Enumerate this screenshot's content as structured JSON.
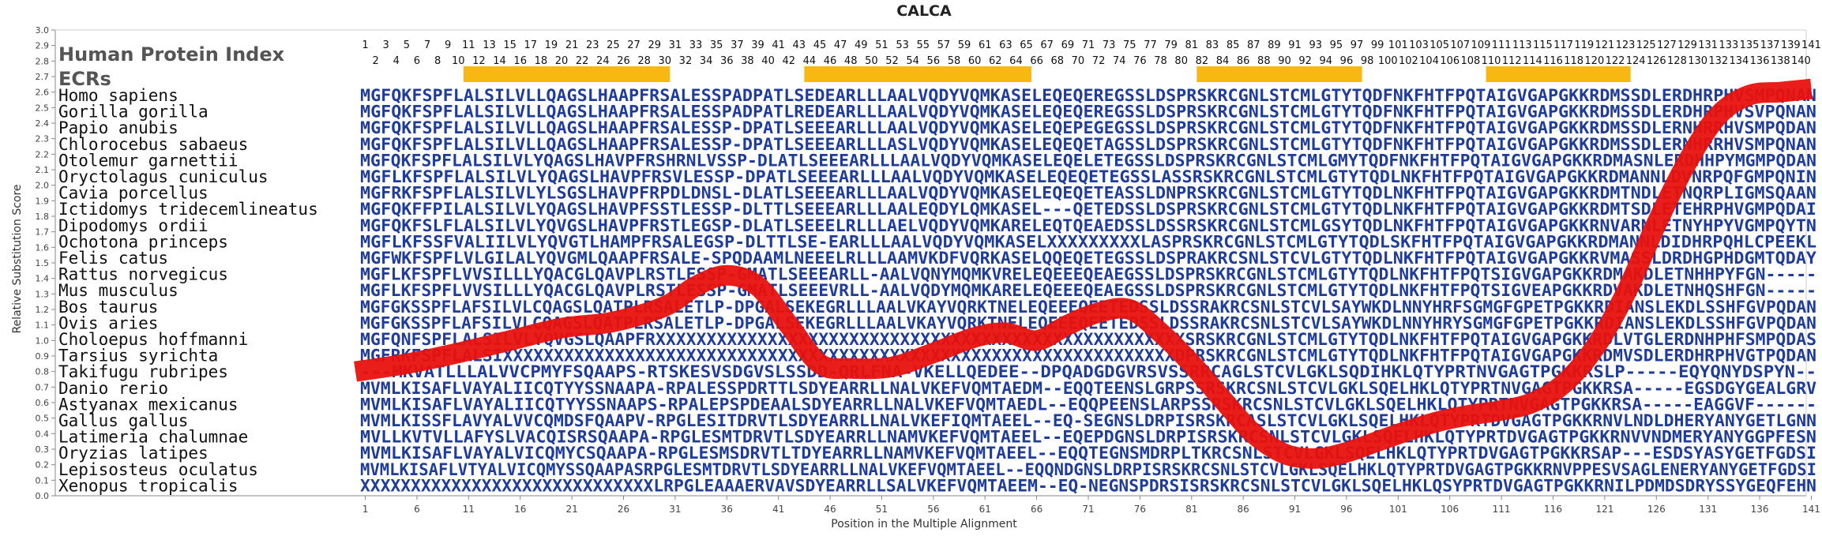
{
  "chart_data": {
    "type": "line",
    "title": "CALCA",
    "xlabel": "Position in the Multiple Alignment",
    "ylabel": "Relative Substitution Score",
    "panel_title": "Human Protein Index",
    "ecr_label": "ECRs",
    "ylim": [
      0,
      3.0
    ],
    "yticks": [
      "0.0",
      "0.1",
      "0.2",
      "0.3",
      "0.4",
      "0.5",
      "0.6",
      "0.7",
      "0.8",
      "0.9",
      "1.0",
      "1.1",
      "1.2",
      "1.3",
      "1.4",
      "1.5",
      "1.6",
      "1.7",
      "1.8",
      "1.9",
      "2.0",
      "2.1",
      "2.2",
      "2.3",
      "2.4",
      "2.5",
      "2.6",
      "2.7",
      "2.8",
      "2.9",
      "3.0"
    ],
    "xlim": [
      1,
      141
    ],
    "xticks": [
      "1",
      "6",
      "11",
      "16",
      "21",
      "26",
      "31",
      "36",
      "41",
      "46",
      "51",
      "56",
      "61",
      "66",
      "71",
      "76",
      "81",
      "86",
      "91",
      "96",
      "101",
      "106",
      "111",
      "116",
      "121",
      "126",
      "131",
      "136",
      "141"
    ],
    "index_odd": [
      "1",
      "3",
      "5",
      "7",
      "9",
      "11",
      "13",
      "15",
      "17",
      "19",
      "21",
      "23",
      "25",
      "27",
      "29",
      "31",
      "33",
      "35",
      "37",
      "39",
      "41",
      "43",
      "45",
      "47",
      "49",
      "51",
      "53",
      "55",
      "57",
      "59",
      "61",
      "63",
      "65",
      "67",
      "69",
      "71",
      "73",
      "75",
      "77",
      "79",
      "81",
      "83",
      "85",
      "87",
      "89",
      "91",
      "93",
      "95",
      "97",
      "99",
      "101",
      "103",
      "105",
      "107",
      "109",
      "111",
      "113",
      "115",
      "117",
      "119",
      "121",
      "123",
      "125",
      "127",
      "129",
      "131",
      "133",
      "135",
      "137",
      "139",
      "141"
    ],
    "index_even": [
      "2",
      "4",
      "6",
      "8",
      "10",
      "12",
      "14",
      "16",
      "18",
      "20",
      "22",
      "24",
      "26",
      "28",
      "30",
      "32",
      "34",
      "36",
      "38",
      "40",
      "42",
      "44",
      "46",
      "48",
      "50",
      "52",
      "54",
      "56",
      "58",
      "60",
      "62",
      "64",
      "66",
      "68",
      "70",
      "72",
      "74",
      "76",
      "78",
      "80",
      "82",
      "84",
      "86",
      "88",
      "90",
      "92",
      "94",
      "96",
      "98",
      "100",
      "102",
      "104",
      "106",
      "108",
      "110",
      "112",
      "114",
      "116",
      "118",
      "120",
      "122",
      "124",
      "126",
      "128",
      "130",
      "132",
      "134",
      "136",
      "138",
      "140"
    ],
    "ecrs": [
      [
        11,
        30
      ],
      [
        44,
        65
      ],
      [
        82,
        97
      ],
      [
        110,
        123
      ]
    ],
    "sequences": [
      {
        "name": "Homo sapiens",
        "seq": "MGFQKFSPFLALSILVLLQAGSLHAAPFRSALESSPADPATLSEDEARLLLAALVQDYVQMKASELEQEQEREGSSLDSPRSKRCGNLSTCMLGTYTQDFNKFHTFPQTAIGVGAPGKKRDMSSDLERDHRPHVSMPQNAN"
      },
      {
        "name": "Gorilla gorilla",
        "seq": "MGFQKFSPFLALSILVLLQAGSLHAAPFRSALESSPADPATLREDEARLLLAALVQDYVQMKASELEQEQEREGSSLDSPRSKRCGNLSTCMLGTYTQDFNKFHTFPQTAIGVGAPGKKRDMSSDLERDHRPHVSVPQNAN"
      },
      {
        "name": "Papio anubis",
        "seq": "MGFQKFSPFLALSILVLLQAGSLHAAPFRSALESSP-DPATLSEEEARLLLAALVQDYVQMKASELEQEPEGEGSSLDSPRSKRCGNLSTCMLGTYTQDFNKFHTFPQTAIGVGAPGKKRDMSSDLERNHRRHVSMPQDAN"
      },
      {
        "name": "Chlorocebus sabaeus",
        "seq": "MGFQKFSPFLALSILVLLQAGSLHAAPFRSALESSP-DPATLSEEEARLLLASLVQDYVQMKASELEQEQETAGSSLDSPRSKRCGNLSTCMLGTYTQDFNKFHTFPQTAIGVGAPGKKRDMSSDLERNHRRHVSMPQNAN"
      },
      {
        "name": "Otolemur garnettii",
        "seq": "MGFQKFSPFLALSILVLYQAGSLHAVPFRSHRNLVSSP-DLATLSEEEARLLLAALVQDYVQMKASELEQELETEGSSLDSPRSKRCGNLSTCMLGMYTQDFNKFHTFPQTAIGVGAPGKKRDMASNLERDHHPYMGMPQDAN"
      },
      {
        "name": "Oryctolagus cuniculus",
        "seq": "MGFLKFSPFLALSILVLYQAGSLHAVPFRSVLESSP-DPATLSEEEARLLLAALVQDYVQMKASELEQEQETEGSSLASSRSKRCGNLSTCMLGTYTQDLNKFHTFPQTAIGVGAPGKKRDMANNLDVNRPQFGMPQNIN"
      },
      {
        "name": "Cavia porcellus",
        "seq": "MGFRKFSPFLALSILVLYLSGSLHAVPFRPDLDNSL-DLATLSEEEARLLLAALVQDYVQMKASELEQEQETEASSLDNPRSKRCGNLSTCMLGTYTQDLNKFHTFPQTAIGVGAPGKKRDMTNDLETNQRPLIGMSQAAN"
      },
      {
        "name": "Ictidomys tridecemlineatus",
        "seq": "MGFQKFFPILALSILVLYQAGSLHAVPFSSTLESSP-DLTTLSEEEARLLLAALEQDYLQMKASEL---QETEDSSLDSPRSKRCGNLSTCMLGTYTQDLNKFHTFPQTAIGVGAPGKKRDMTSDLETEHRPHVGMPQDAI"
      },
      {
        "name": "Dipodomys ordii",
        "seq": "MGFQKFSLFLALSILVLYQVGSLHAVPFRSTLEGSP-DLATLSEEELRLLLAELVQDYVQMKARELEQTQEAEDSSLDSSRSKRCGNLSTCMLGSYTQDLNKFHTFPQTAIGVGAPGKKRNVARNLETNYHPYVGMPQYTN"
      },
      {
        "name": "Ochotona princeps",
        "seq": "MGFLKFSSFVALIILVLYQVGTLHAMPFRSALEGSP-DLTTLSE-EARLLLAALVQDYVQMKASELXXXXXXXXXLASPRSKRCGNLSTCMLGTYTQDLSKFHTFPQTAIGVGAPGKKRDMANNLDIDHRPQHLCPEEKL"
      },
      {
        "name": "Felis catus",
        "seq": "MGFWKFSPFLVLGILALYQVGMLQAAPFRSALE-SPQDAAMLNEEELRLLLAAMVKDFVQRKASELQQEQETEGSSLDSPRAKRCSNLSTCVLGTYTQDLNKFHTFPQTAIGVGAPGKKRVMASSLDRDHGPHDGMTQDAY"
      },
      {
        "name": "Rattus norvegicus",
        "seq": "MGFLKFSPFLVVSILLLYQACGLQAVPLRSTLESSP-GMATLSEEEARLL-AALVQNYMQMKVRELEQEEEQEAEGSSLDSPRSKRCGNLSTCMLGTYTQDLNKFHTFPQTSIGVGAPGKKRDMAKDLETNHHPYFGN-----"
      },
      {
        "name": "Mus musculus",
        "seq": "MGFLKFSPFLVVSILLLYQACGLQAVPLRSTLESSP-GMATLSEEEVRLL-AALVQDYMQMKARELEQEEEQEAEGSSLDSPRSKRCGNLSTCMLGTYTQDLNKFHTFPQTSIGVEAPGKKRDVAKDLETNHQSHFGN-----"
      },
      {
        "name": "Bos taurus",
        "seq": "MGFGKSSPFLAFSILVLCQAGSLQATPLRSALETLP-DPGALSEKEGRLLLAALVKAYVQRKTNELEQEEEQEETEDSSLDSSRAKRCSNLSTCVLSAYWKDLNNYHRFSGMGFGPETPGKKRDIANSLEKDLSSHFGVPQDAN"
      },
      {
        "name": "Ovis aries",
        "seq": "MGFGKSSPFLAFSILVLCQAGSLQATPLRSALETLP-DPGALSEKEGRLLLAALVKAYVQRKTNELEQEEEQEETEDSSLDSSRAKRCSNLSTCVLSAYWKDLNNYHRYSGMGFGPETPGKKRDIANSLEKDLSSHFGVPQDAN"
      },
      {
        "name": "Choloepus hoffmanni",
        "seq": "MGFQNFSPFLALSILVLYQVGSLQAAPFRXXXXXXXXXXXXXXXXXXXXXXXXXXXXXXXXXXXXXXXXXXXXXXXXXXXXSRSKRCGNLSTCMLGTYTQDLNKFHTFPQTAIGVGAPGKKRDLVTGLERDNHPHFSMPQDAS"
      },
      {
        "name": "Tarsius syrichta",
        "seq": "MGFRKFSPFLALSIXXXXXXXXXXXXXXXXXXXXXXXXXXXXXXXXXXXXXXXXXXXXXXXXXXXXXXXXXXXXXXXXXXDPRSKRCGNLSTCMLGTYTQDLNKFHTFPQTAIGVGAPGKKRDMVSDLERDHRPHVGTPQDAN"
      },
      {
        "name": "Takifugu rubripes",
        "seq": "---MKVATLLLALVVCPMYFSQAAPS-RTSKESVSDGVSLSSDD-QRLFNA-VKELLQEDEE--DPQADGDGVRSVSSRRCAGLSTCVLGKLSQDIHKLQTYPRTNVGAGTPGKKRSLP-----EQYQNYDSPYN--"
      },
      {
        "name": "Danio rerio",
        "seq": "MVMLKISAFLVAYALIICQTYYSSNAAPA-RPALESSPDRTTLSDYEARRLLNALVKEFVQMTAEDM--EQQTEENSLGRPSSRSKRCSNLSTCVLGKLSQELHKLQTYPRTNVGAGTPGKKRSA-----EGSDGYGEALGRV"
      },
      {
        "name": "Astyanax mexicanus",
        "seq": "MVMLKISAFLVAYALIICQTYYSSNAAPS-RPALEPSPDEAALSDYEARRLLNALVKEFVQMTAEDL--EQQPEENSLARPSSRSKRCSNLSTCVLGKLSQELHKLQTYPRTNVGAGTPGKKRSA-----EAGGVF------"
      },
      {
        "name": "Gallus gallus",
        "seq": "MVMLKISSFLAVYALVVCQMDSFQAAPV-RPGLESITDRVTLSDYEARRLLNALVKEFIQMTAEEL--EQ-SEGNSLDRPISRSKRCASLSTCVLGKLSQELHKLQTYPRTDVGAGTPGKKRNVLNDLDHERYANYGETLGNN"
      },
      {
        "name": "Latimeria chalumnae",
        "seq": "MVLLKVTVLLAFYSLVACQISRSQAAPA-RPGLESMTDRVTLSDYEARRLLNAMVKEFVQMTAEEL--EQEPDGNSLDRPISRSKRCSNLSTCVLGKLSQELHKLQTYPRTDVGAGTPGKKRNVVNDMERYANYGGPFESN"
      },
      {
        "name": "Oryzias latipes",
        "seq": "MVMLKISAFLVAYALVICQMYCSQAAPA-RPGLESMSDRVTLTDYEARRLLNAMVKEFVQMTAEEL--EQQTEGNSMDRPLTKRCSNLSTCVLGKLSQELHKLQTYPRTDVGAGTPGKKRSAP---ESDSYASYGETFGDSI"
      },
      {
        "name": "Lepisosteus oculatus",
        "seq": "MVMLKISAFLVTYALVICQMYSSQAAPASRPGLESMTDRVTLSDYEARRLLNALVKEFVQMTAEEL--EQQNDGNSLDRPISRSKRCSNLSTCVLGKLSQELHKLQTYPRTDVGAGTPGKKRNVPPESVSAGLENERYANYGETFGDSI"
      },
      {
        "name": "Xenopus tropicalis",
        "seq": "XXXXXXXXXXXXXXXXXXXXXXXXXXXXXLRPGLEAAAERVAVSDYEARRLLSALVKEFVQMTAEEM--EQ-NEGNSPDRSISRSKRCSNLSTCVLGKLSQELHKLQSYPRTDVGAGTPGKKRNILPDMDSDRYSSYGEQFEHN"
      }
    ],
    "series": [
      {
        "x": [
          1,
          5,
          10,
          15,
          20,
          25,
          30,
          33,
          36,
          39,
          42,
          45,
          48,
          52,
          56,
          60,
          63,
          66,
          69,
          72,
          75,
          78,
          81,
          84,
          87,
          90,
          93,
          96,
          99,
          102,
          105,
          108,
          111,
          114,
          117,
          120,
          123,
          126,
          129,
          132,
          135,
          138,
          141
        ],
        "y": [
          0.8,
          0.85,
          0.92,
          1.0,
          1.08,
          1.12,
          1.22,
          1.35,
          1.42,
          1.35,
          1.1,
          0.85,
          0.82,
          0.83,
          0.92,
          1.02,
          1.05,
          1.0,
          1.1,
          1.18,
          1.2,
          1.05,
          0.85,
          0.62,
          0.4,
          0.27,
          0.24,
          0.28,
          0.35,
          0.42,
          0.48,
          0.52,
          0.55,
          0.6,
          0.72,
          0.95,
          1.3,
          1.75,
          2.15,
          2.45,
          2.58,
          2.6,
          2.62
        ]
      }
    ],
    "colors": {
      "curve": "#e8110d",
      "ecr": "#f6b811",
      "sequence": "#1f3c9a",
      "tail": "#5f8f8f",
      "axis": "#888888",
      "text": "#222222"
    },
    "grid": false
  }
}
